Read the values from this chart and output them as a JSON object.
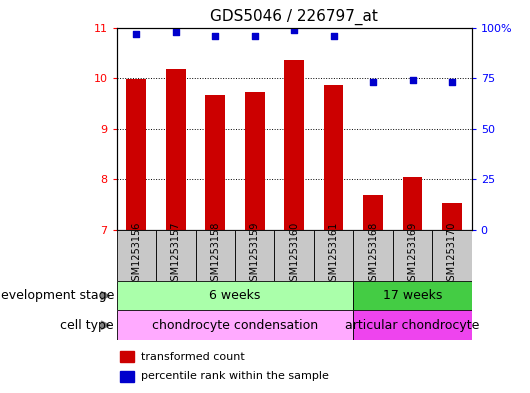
{
  "title": "GDS5046 / 226797_at",
  "samples": [
    "GSM1253156",
    "GSM1253157",
    "GSM1253158",
    "GSM1253159",
    "GSM1253160",
    "GSM1253161",
    "GSM1253168",
    "GSM1253169",
    "GSM1253170"
  ],
  "bar_values": [
    9.98,
    10.18,
    9.67,
    9.72,
    10.35,
    9.87,
    7.69,
    8.05,
    7.53
  ],
  "bar_bottom": 7.0,
  "percentile_values": [
    97,
    98,
    96,
    96,
    99,
    96,
    73,
    74,
    73
  ],
  "ylim_left": [
    7,
    11
  ],
  "ylim_right": [
    0,
    100
  ],
  "yticks_left": [
    7,
    8,
    9,
    10,
    11
  ],
  "yticks_right": [
    0,
    25,
    50,
    75,
    100
  ],
  "bar_color": "#cc0000",
  "percentile_color": "#0000cc",
  "bar_width": 0.5,
  "group1_count": 6,
  "group2_count": 3,
  "dev_stage_labels": [
    "6 weeks",
    "17 weeks"
  ],
  "cell_type_labels": [
    "chondrocyte condensation",
    "articular chondrocyte"
  ],
  "dev_stage_colors": [
    "#aaffaa",
    "#44cc44"
  ],
  "cell_type_colors": [
    "#ffaaff",
    "#ee44ee"
  ],
  "row_label_dev": "development stage",
  "row_label_cell": "cell type",
  "legend_items": [
    "transformed count",
    "percentile rank within the sample"
  ],
  "title_fontsize": 11,
  "tick_fontsize": 8,
  "label_fontsize": 9,
  "sample_label_fontsize": 7,
  "row_label_fontsize": 9
}
